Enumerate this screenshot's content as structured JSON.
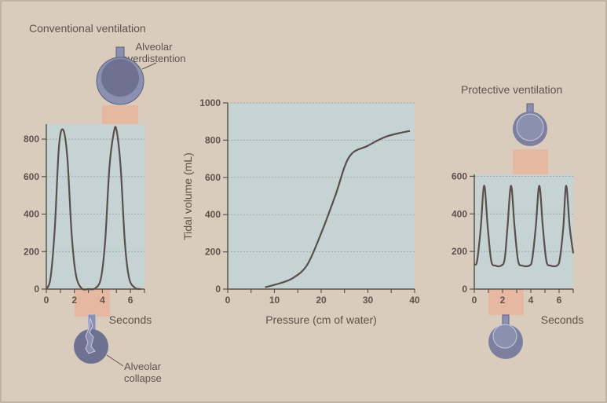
{
  "titles": {
    "conventional": "Conventional ventilation",
    "protective": "Protective ventilation"
  },
  "annotations": {
    "overdistention_1": "Alveolar",
    "overdistention_2": "overdistention",
    "collapse_1": "Alveolar",
    "collapse_2": "collapse"
  },
  "colors": {
    "background": "#d9ccbd",
    "panel": "#c6d3d3",
    "curve": "#5a4f4a",
    "alveolus": "#7c7f9e",
    "band": "#eab39a"
  },
  "chart_data": [
    {
      "id": "conventional",
      "type": "line",
      "xlabel": "Seconds",
      "ylabel": "",
      "xlim": [
        0,
        7
      ],
      "ylim": [
        0,
        880
      ],
      "xticks": [
        "0",
        "2",
        "4",
        "6"
      ],
      "yticks": [
        "0",
        "200",
        "400",
        "600",
        "800"
      ],
      "grid": true,
      "x": [
        0,
        0.3,
        0.6,
        0.9,
        1.2,
        1.5,
        1.8,
        2.1,
        2.5,
        3.0,
        3.5,
        3.9,
        4.2,
        4.5,
        4.8,
        5.0,
        5.3,
        5.6,
        5.9,
        6.3,
        6.7
      ],
      "y": [
        0,
        60,
        320,
        760,
        850,
        700,
        300,
        80,
        5,
        0,
        5,
        60,
        260,
        650,
        830,
        850,
        650,
        250,
        60,
        8,
        0
      ]
    },
    {
      "id": "pressure-volume",
      "type": "line",
      "xlabel": "Pressure (cm of water)",
      "ylabel": "Tidal volume (mL)",
      "xlim": [
        0,
        40
      ],
      "ylim": [
        0,
        1000
      ],
      "xticks": [
        "0",
        "10",
        "20",
        "30",
        "40"
      ],
      "yticks": [
        "0",
        "200",
        "400",
        "600",
        "800",
        "1000"
      ],
      "grid": true,
      "x": [
        8,
        11,
        14,
        17,
        20,
        23,
        26,
        30,
        34,
        39
      ],
      "y": [
        10,
        30,
        60,
        130,
        300,
        500,
        710,
        770,
        820,
        850
      ]
    },
    {
      "id": "protective",
      "type": "line",
      "xlabel": "Seconds",
      "ylabel": "",
      "xlim": [
        0,
        7
      ],
      "ylim": [
        0,
        610
      ],
      "xticks": [
        "0",
        "2",
        "4",
        "6"
      ],
      "yticks": [
        "0",
        "200",
        "400",
        "600"
      ],
      "grid": true,
      "x": [
        0,
        0.2,
        0.45,
        0.7,
        0.95,
        1.2,
        1.5,
        1.9,
        2.15,
        2.35,
        2.6,
        2.85,
        3.1,
        3.4,
        3.9,
        4.1,
        4.35,
        4.6,
        4.85,
        5.1,
        5.4,
        5.85,
        6.05,
        6.3,
        6.5,
        6.75,
        7.0
      ],
      "y": [
        130,
        150,
        320,
        550,
        330,
        150,
        125,
        125,
        160,
        330,
        550,
        330,
        150,
        125,
        125,
        160,
        330,
        550,
        330,
        150,
        125,
        125,
        160,
        330,
        550,
        330,
        190
      ]
    }
  ]
}
